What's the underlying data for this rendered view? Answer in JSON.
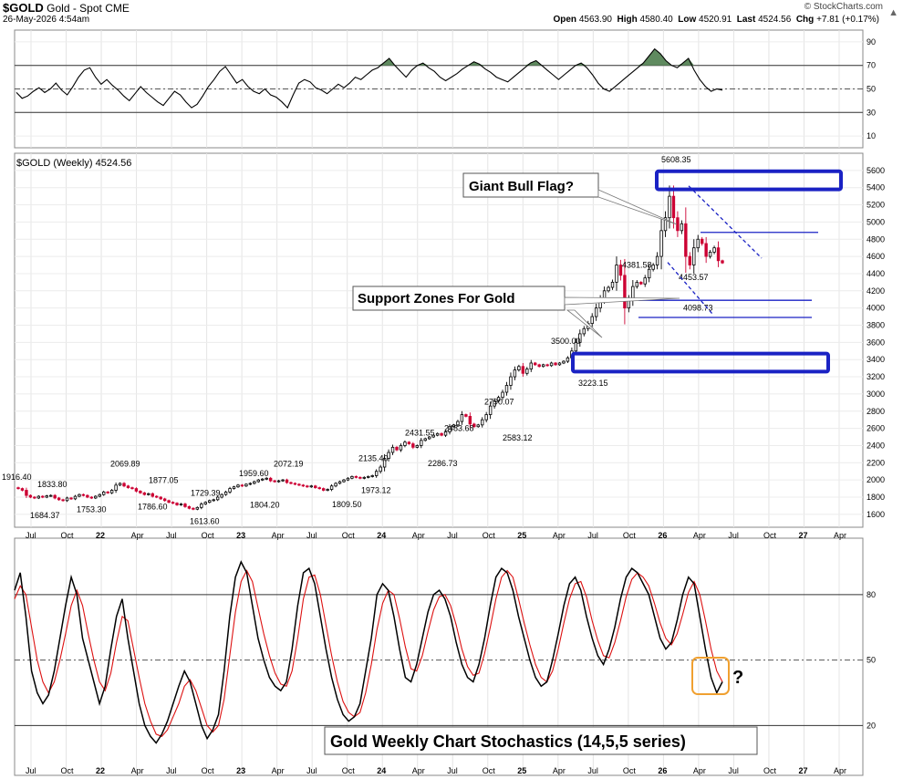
{
  "header": {
    "symbol": "$GOLD",
    "name": "Gold - Spot",
    "exchange": "CME",
    "datetime": "26-May-2026 4:54am",
    "source": "© StockCharts.com",
    "open_label": "Open",
    "open": "4563.90",
    "high_label": "High",
    "high": "4580.40",
    "low_label": "Low",
    "low": "4520.91",
    "last_label": "Last",
    "last": "4524.56",
    "chg_label": "Chg",
    "chg": "+7.81 (+0.17%)"
  },
  "colors": {
    "up": "#000000",
    "down": "#cc0033",
    "rsi_fill": "#5f8a5f",
    "annotation_box": "#1a22c4",
    "k_line": "#000000",
    "d_line": "#dd1111",
    "question_box": "#f0a030"
  },
  "chart_data": [
    {
      "type": "line",
      "panel": "rsi",
      "ylim": [
        0,
        100
      ],
      "y_ticks": [
        10,
        30,
        50,
        70,
        90
      ],
      "reference_lines": [
        30,
        50,
        70
      ],
      "series": [
        {
          "values": [
            47,
            42,
            44,
            48,
            51,
            47,
            50,
            55,
            49,
            45,
            52,
            60,
            66,
            68,
            60,
            54,
            58,
            53,
            49,
            44,
            40,
            46,
            52,
            47,
            43,
            39,
            36,
            42,
            48,
            45,
            39,
            34,
            37,
            44,
            52,
            58,
            65,
            69,
            62,
            55,
            58,
            52,
            48,
            46,
            50,
            45,
            43,
            39,
            34,
            45,
            55,
            58,
            56,
            51,
            49,
            46,
            50,
            54,
            51,
            55,
            60,
            58,
            62,
            66,
            68,
            72,
            76,
            70,
            65,
            60,
            66,
            70,
            72,
            68,
            65,
            60,
            57,
            60,
            63,
            67,
            70,
            73,
            71,
            67,
            64,
            60,
            58,
            56,
            60,
            64,
            68,
            72,
            74,
            70,
            66,
            62,
            58,
            62,
            66,
            70,
            72,
            68,
            62,
            55,
            50,
            48,
            52,
            56,
            60,
            64,
            68,
            72,
            78,
            84,
            80,
            74,
            70,
            68,
            72,
            76,
            66,
            58,
            52,
            48,
            50,
            49
          ]
        }
      ]
    },
    {
      "type": "candlestick",
      "panel": "price",
      "title": "$GOLD (Weekly) 4524.56",
      "ylim": [
        1450,
        5800
      ],
      "y_ticks": [
        1600,
        1800,
        2000,
        2200,
        2400,
        2600,
        2800,
        3000,
        3200,
        3400,
        3600,
        3800,
        4000,
        4200,
        4400,
        4600,
        4800,
        5000,
        5200,
        5400,
        5600
      ],
      "x_tick_labels": [
        "Jul",
        "Oct",
        "22",
        "Apr",
        "Jul",
        "Oct",
        "23",
        "Apr",
        "Jul",
        "Oct",
        "24",
        "Apr",
        "Jul",
        "Oct",
        "25",
        "Apr",
        "Jul",
        "Oct",
        "26",
        "Apr",
        "Jul",
        "Oct",
        "27",
        "Apr"
      ],
      "closes": [
        1900,
        1880,
        1820,
        1800,
        1790,
        1810,
        1800,
        1815,
        1820,
        1790,
        1770,
        1760,
        1790,
        1780,
        1810,
        1830,
        1820,
        1800,
        1790,
        1810,
        1830,
        1860,
        1850,
        1880,
        1940,
        1960,
        1930,
        1910,
        1900,
        1870,
        1850,
        1830,
        1840,
        1810,
        1800,
        1780,
        1760,
        1740,
        1730,
        1710,
        1720,
        1690,
        1670,
        1660,
        1680,
        1720,
        1740,
        1760,
        1770,
        1800,
        1830,
        1860,
        1900,
        1920,
        1940,
        1930,
        1950,
        1960,
        1980,
        2000,
        2010,
        2020,
        1990,
        1980,
        1990,
        2000,
        1970,
        1960,
        1950,
        1940,
        1930,
        1920,
        1930,
        1910,
        1900,
        1880,
        1890,
        1930,
        1960,
        1980,
        2000,
        2020,
        2040,
        2030,
        2020,
        2030,
        2040,
        2050,
        2100,
        2150,
        2250,
        2320,
        2380,
        2350,
        2400,
        2440,
        2420,
        2380,
        2400,
        2460,
        2480,
        2500,
        2520,
        2540,
        2520,
        2560,
        2620,
        2640,
        2680,
        2760,
        2740,
        2650,
        2620,
        2640,
        2700,
        2760,
        2860,
        2920,
        2960,
        3020,
        3100,
        3200,
        3280,
        3320,
        3240,
        3290,
        3360,
        3340,
        3320,
        3340,
        3330,
        3360,
        3340,
        3360,
        3380,
        3420,
        3500,
        3600,
        3700,
        3760,
        3820,
        3900,
        4000,
        4100,
        4200,
        4240,
        4300,
        4500,
        4380,
        4000,
        4100,
        4250,
        4300,
        4280,
        4350,
        4450,
        4500,
        4600,
        4900,
        5050,
        5300,
        5050,
        4900,
        4980,
        4600,
        4500,
        4700,
        4800,
        4750,
        4600,
        4650,
        4700,
        4550,
        4524.56
      ],
      "annotations": [
        {
          "text": "1916.40",
          "y": 1916.4,
          "kind": "high"
        },
        {
          "text": "1833.80",
          "y": 1833.8,
          "kind": "high"
        },
        {
          "text": "1684.37",
          "y": 1684.37,
          "kind": "low"
        },
        {
          "text": "1753.30",
          "y": 1753.3,
          "kind": "low"
        },
        {
          "text": "2069.89",
          "y": 2069.89,
          "kind": "high"
        },
        {
          "text": "1786.60",
          "y": 1786.6,
          "kind": "low"
        },
        {
          "text": "1877.05",
          "y": 1877.05,
          "kind": "high"
        },
        {
          "text": "1729.39",
          "y": 1729.39,
          "kind": "high"
        },
        {
          "text": "1613.60",
          "y": 1613.6,
          "kind": "low"
        },
        {
          "text": "1959.60",
          "y": 1959.6,
          "kind": "high"
        },
        {
          "text": "1804.20",
          "y": 1804.2,
          "kind": "low"
        },
        {
          "text": "2072.19",
          "y": 2072.19,
          "kind": "high"
        },
        {
          "text": "1809.50",
          "y": 1809.5,
          "kind": "low"
        },
        {
          "text": "2135.40",
          "y": 2135.4,
          "kind": "high"
        },
        {
          "text": "1973.12",
          "y": 1973.12,
          "kind": "low"
        },
        {
          "text": "2431.55",
          "y": 2431.55,
          "kind": "high"
        },
        {
          "text": "2286.73",
          "y": 2286.73,
          "kind": "low"
        },
        {
          "text": "2483.68",
          "y": 2483.68,
          "kind": "high"
        },
        {
          "text": "2790.07",
          "y": 2790.07,
          "kind": "high"
        },
        {
          "text": "2583.12",
          "y": 2583.12,
          "kind": "low"
        },
        {
          "text": "3500.00",
          "y": 3500,
          "kind": "high"
        },
        {
          "text": "3223.15",
          "y": 3223.15,
          "kind": "low"
        },
        {
          "text": "4381.58",
          "y": 4381.58,
          "kind": "high"
        },
        {
          "text": "5608.35",
          "y": 5608.35,
          "kind": "high"
        },
        {
          "text": "4453.57",
          "y": 4453.57,
          "kind": "low"
        },
        {
          "text": "4098.73",
          "y": 4098.73,
          "kind": "low"
        }
      ],
      "callouts": [
        "Giant Bull Flag?",
        "Support Zones For Gold"
      ]
    },
    {
      "type": "line",
      "panel": "stochastics",
      "ylim": [
        0,
        100
      ],
      "y_ticks": [
        20,
        50,
        80
      ],
      "reference_lines": [
        20,
        50,
        80
      ],
      "series": [
        {
          "values": [
            82,
            90,
            70,
            45,
            35,
            30,
            34,
            45,
            60,
            75,
            88,
            80,
            60,
            50,
            40,
            30,
            38,
            55,
            70,
            78,
            60,
            45,
            30,
            20,
            15,
            12,
            16,
            22,
            30,
            38,
            45,
            40,
            30,
            20,
            14,
            18,
            25,
            45,
            70,
            88,
            95,
            90,
            75,
            60,
            50,
            42,
            38,
            36,
            40,
            55,
            75,
            90,
            92,
            85,
            70,
            55,
            42,
            32,
            25,
            22,
            24,
            30,
            45,
            60,
            80,
            85,
            82,
            70,
            55,
            42,
            40,
            48,
            60,
            72,
            80,
            82,
            78,
            70,
            58,
            48,
            42,
            40,
            48,
            60,
            75,
            88,
            92,
            90,
            82,
            70,
            60,
            50,
            42,
            38,
            40,
            50,
            62,
            75,
            85,
            88,
            82,
            70,
            60,
            52,
            48,
            55,
            65,
            78,
            88,
            92,
            90,
            85,
            80,
            70,
            60,
            55,
            58,
            68,
            80,
            88,
            85,
            70,
            55,
            42,
            35,
            40
          ]
        },
        {
          "values": [
            78,
            84,
            80,
            65,
            50,
            40,
            35,
            40,
            50,
            62,
            75,
            82,
            75,
            62,
            50,
            40,
            36,
            44,
            58,
            70,
            68,
            55,
            42,
            30,
            22,
            16,
            15,
            18,
            24,
            30,
            38,
            41,
            36,
            28,
            20,
            17,
            20,
            32,
            52,
            72,
            86,
            91,
            86,
            74,
            62,
            52,
            44,
            39,
            38,
            45,
            60,
            78,
            88,
            89,
            80,
            66,
            52,
            40,
            31,
            26,
            24,
            26,
            35,
            48,
            64,
            76,
            82,
            80,
            69,
            56,
            46,
            45,
            52,
            63,
            73,
            79,
            80,
            75,
            66,
            55,
            47,
            43,
            44,
            53,
            65,
            78,
            88,
            91,
            88,
            78,
            67,
            57,
            48,
            42,
            40,
            45,
            55,
            67,
            78,
            85,
            86,
            79,
            68,
            59,
            52,
            51,
            58,
            68,
            79,
            87,
            90,
            88,
            84,
            76,
            67,
            60,
            57,
            62,
            71,
            81,
            86,
            80,
            68,
            55,
            45,
            40
          ]
        }
      ],
      "callouts": [
        "Gold Weekly Chart Stochastics (14,5,5 series)",
        "?"
      ]
    }
  ]
}
